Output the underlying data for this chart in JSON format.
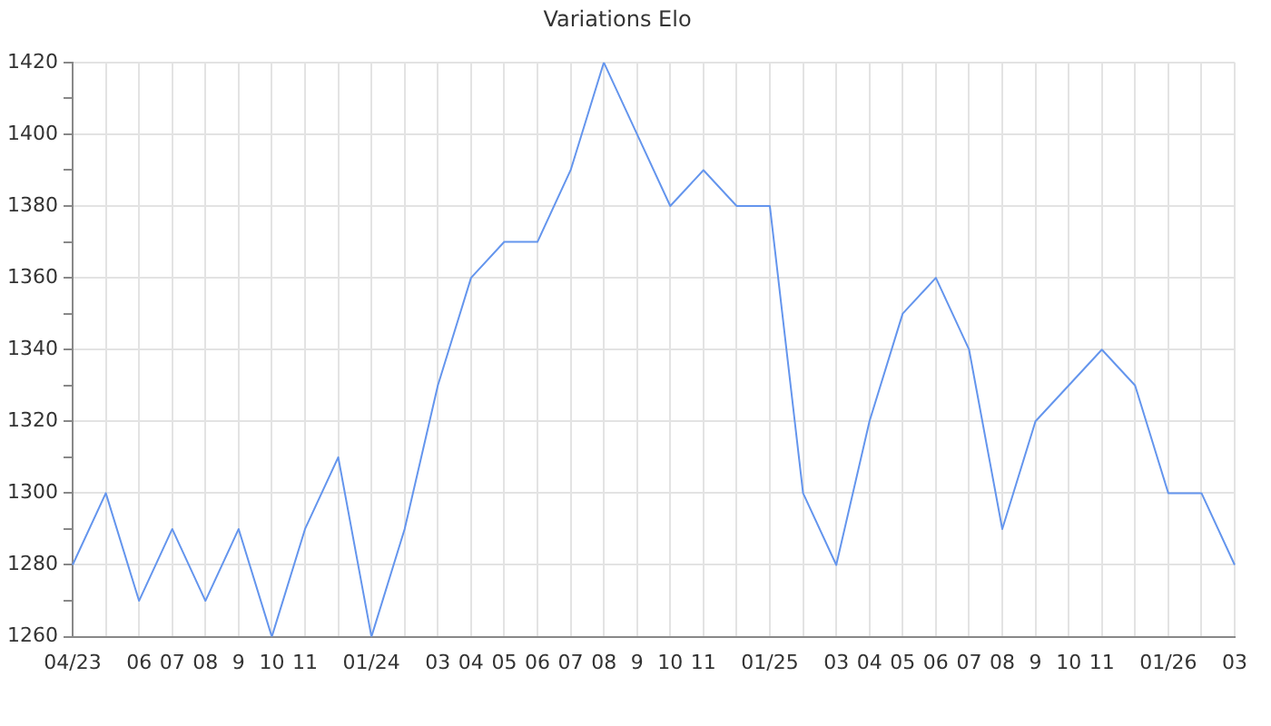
{
  "chart_data": {
    "type": "line",
    "title": "Variations Elo",
    "categories": [
      "04/23",
      null,
      "06",
      "07",
      "08",
      "9",
      "10",
      "11",
      null,
      "01/24",
      null,
      "03",
      "04",
      "05",
      "06",
      "07",
      "08",
      "9",
      "10",
      "11",
      null,
      "01/25",
      null,
      "03",
      "04",
      "05",
      "06",
      "07",
      "08",
      "9",
      "10",
      "11",
      null,
      "01/26",
      null,
      "03"
    ],
    "series": [
      {
        "color": "#6495ed",
        "values": [
          1280,
          1300,
          1270,
          1290,
          1270,
          1290,
          1260,
          1290,
          1310,
          1260,
          1290,
          1330,
          1360,
          1370,
          1370,
          1390,
          1420,
          1400,
          1380,
          1390,
          1380,
          1380,
          1300,
          1280,
          1320,
          1350,
          1360,
          1340,
          1290,
          1320,
          1330,
          1340,
          1330,
          1300,
          1300,
          1280
        ]
      }
    ],
    "ylim": [
      1260,
      1420
    ],
    "yticks": [
      1260,
      {
        "value": 1270,
        "label": null
      },
      1280,
      {
        "value": 1290,
        "label": null
      },
      1300,
      {
        "value": 1310,
        "label": null
      },
      1320,
      {
        "value": 1330,
        "label": null
      },
      1340,
      {
        "value": 1350,
        "label": null
      },
      1360,
      {
        "value": 1370,
        "label": null
      },
      1380,
      {
        "value": 1390,
        "label": null
      },
      1400,
      {
        "value": 1410,
        "label": null
      },
      1420
    ],
    "grid": true,
    "legend": false,
    "marker": "none",
    "line_style": "solid"
  }
}
